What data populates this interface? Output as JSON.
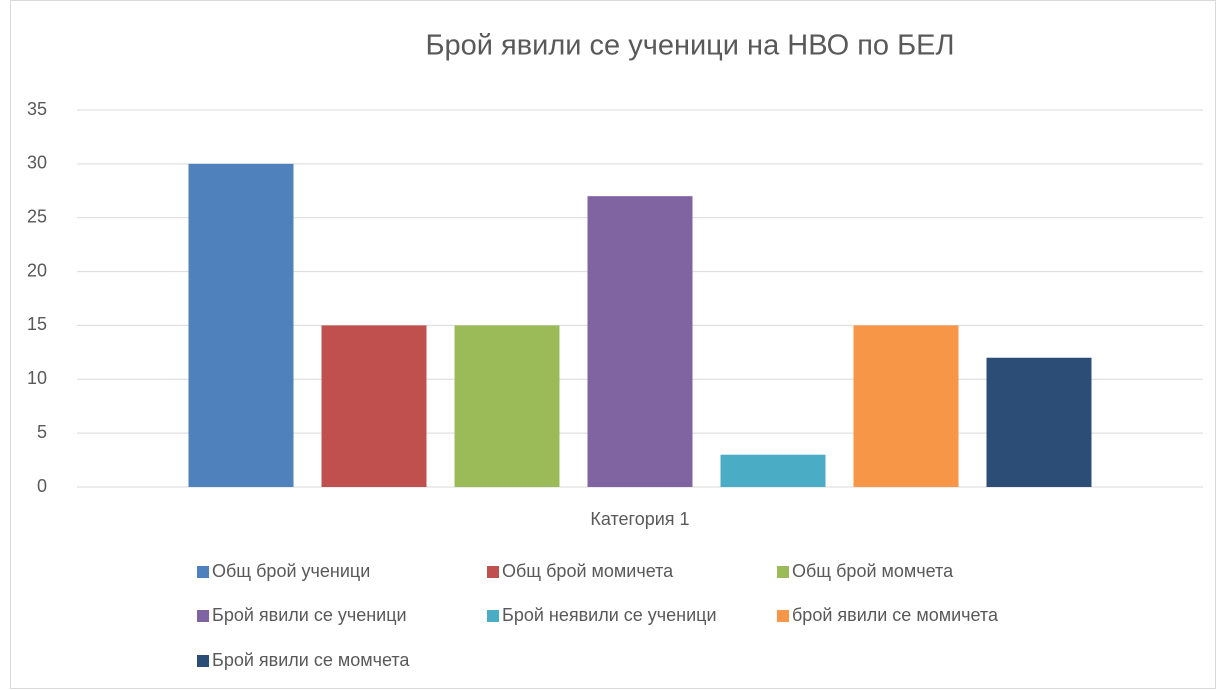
{
  "chart_data": {
    "type": "bar",
    "title": "Брой явили се ученици на НВО по БЕЛ",
    "categories": [
      "Категория 1"
    ],
    "series": [
      {
        "name": "Общ брой ученици",
        "color": "#4f81bd",
        "values": [
          30
        ]
      },
      {
        "name": "Общ брой момичета",
        "color": "#c0504d",
        "values": [
          15
        ]
      },
      {
        "name": "Общ брой момчета",
        "color": "#9bbb59",
        "values": [
          15
        ]
      },
      {
        "name": "Брой явили се ученици",
        "color": "#8064a2",
        "values": [
          27
        ]
      },
      {
        "name": "Брой неявили се ученици",
        "color": "#4bacc6",
        "values": [
          3
        ]
      },
      {
        "name": "брой явили се момичета",
        "color": "#f79646",
        "values": [
          15
        ]
      },
      {
        "name": "Брой явили се момчета",
        "color": "#2c4d75",
        "values": [
          12
        ]
      }
    ],
    "ylim": [
      0,
      35
    ],
    "yticks": [
      0,
      5,
      10,
      15,
      20,
      25,
      30,
      35
    ],
    "grid": true,
    "legend": "bottom"
  }
}
